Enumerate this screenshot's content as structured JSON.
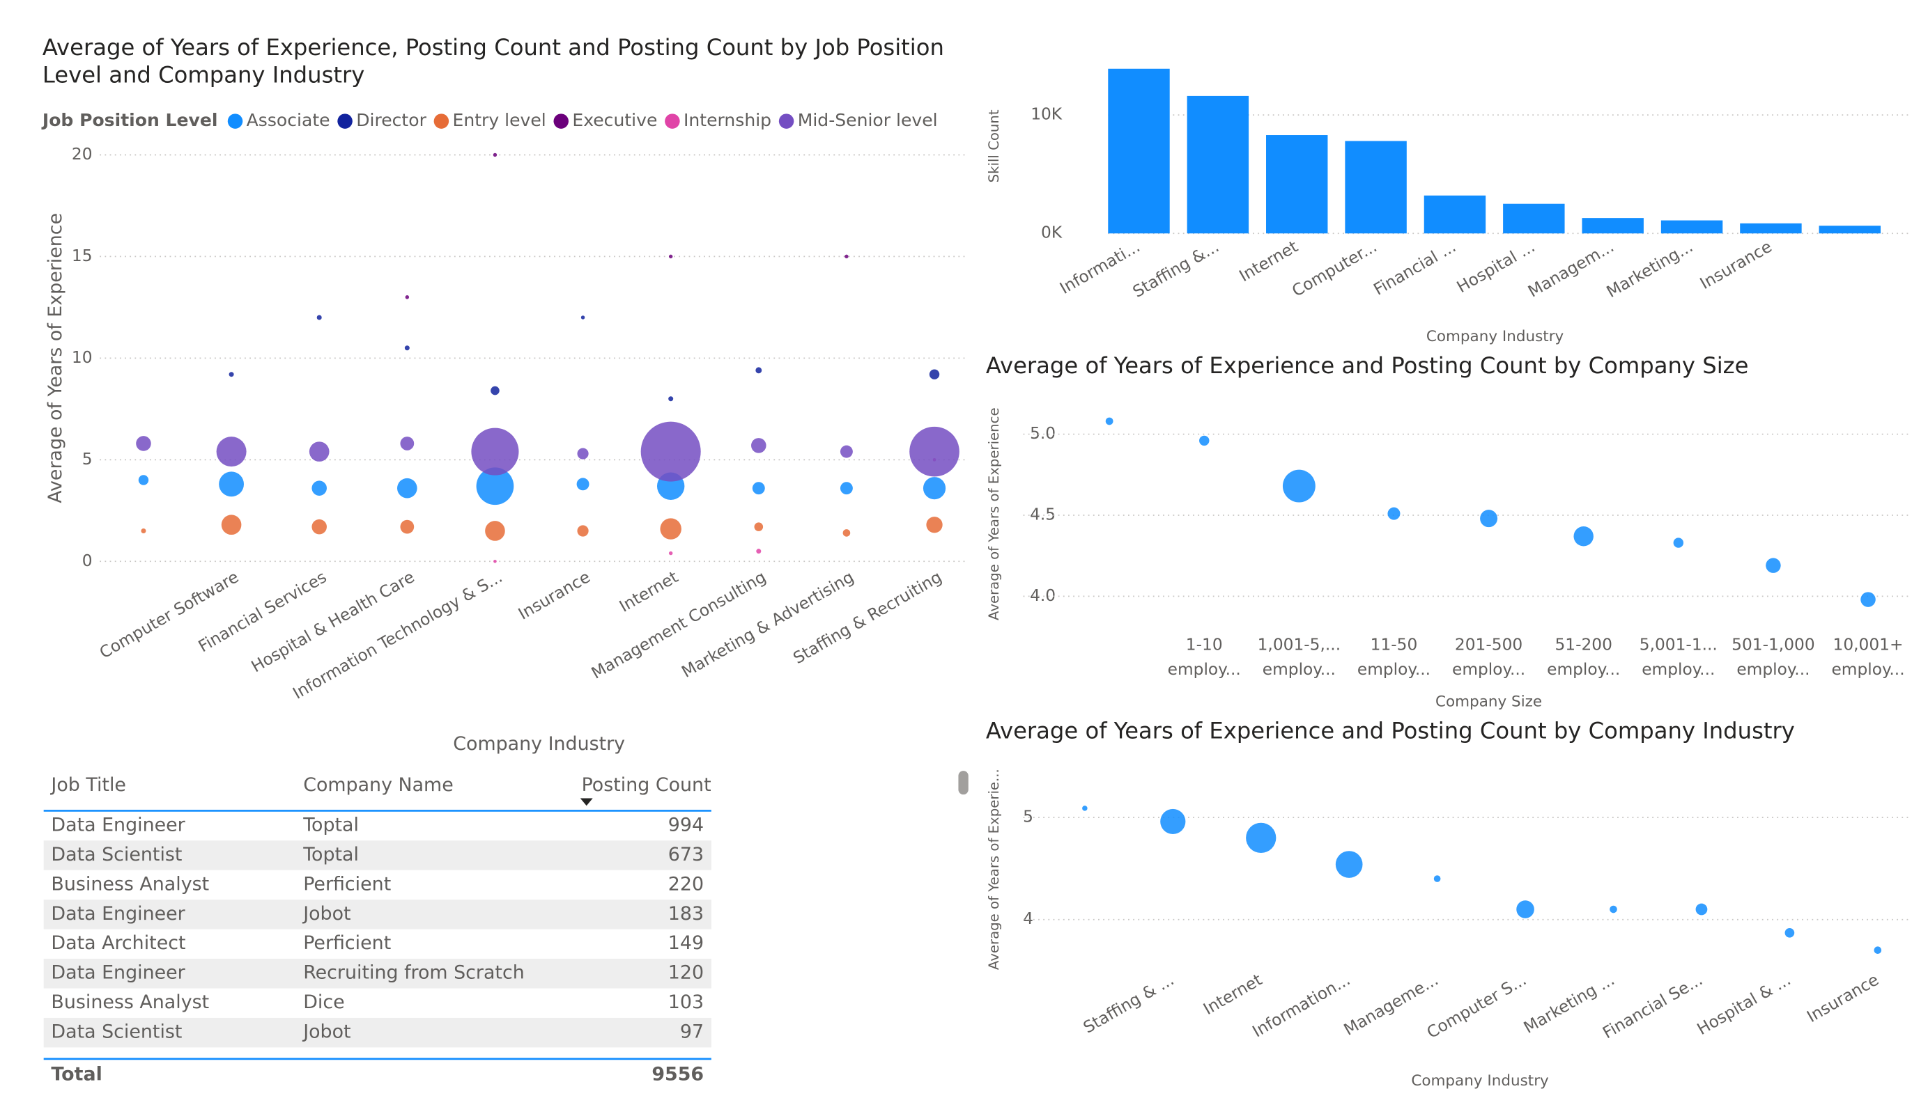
{
  "chart_data": [
    {
      "type": "scatter",
      "title": "Average of Years of Experience, Posting Count and Posting Count by Job Position Level and Company Industry",
      "legend_title": "Job Position Level",
      "x_label": "Company Industry",
      "y_label": "Average of Years of Experience",
      "categories": [
        null,
        "Computer Software",
        "Financial Services",
        "Hospital & Health Care",
        "Information Technology & S...",
        "Insurance",
        "Internet",
        "Management Consulting",
        "Marketing & Advertising",
        "Staffing & Recruiting"
      ],
      "ylim": [
        0,
        20
      ],
      "yticks": [
        0,
        5,
        10,
        15,
        20
      ],
      "grid": true,
      "series": [
        {
          "name": "Associate",
          "color": "#118DFF",
          "values": [
            4.0,
            3.8,
            3.6,
            3.6,
            3.7,
            3.8,
            3.7,
            3.6,
            3.6,
            3.6
          ],
          "sizes": [
            42,
            260,
            94,
            166,
            585,
            65,
            315,
            65,
            65,
            210
          ]
        },
        {
          "name": "Director",
          "color": "#12239E",
          "values": [
            null,
            9.2,
            12.0,
            10.5,
            8.4,
            12.0,
            8.0,
            9.4,
            null,
            9.2
          ],
          "sizes": [
            null,
            10,
            10,
            10,
            32,
            6,
            10,
            16,
            null,
            42
          ]
        },
        {
          "name": "Entry level",
          "color": "#E66C37",
          "values": [
            1.5,
            1.8,
            1.7,
            1.7,
            1.5,
            1.5,
            1.6,
            1.7,
            1.4,
            1.8
          ],
          "sizes": [
            10,
            166,
            94,
            79,
            166,
            53,
            188,
            32,
            23,
            110
          ]
        },
        {
          "name": "Executive",
          "color": "#6B007B",
          "values": [
            null,
            null,
            null,
            13.0,
            20.0,
            null,
            15.0,
            null,
            15.0,
            null
          ],
          "sizes": [
            null,
            null,
            null,
            6,
            6,
            null,
            6,
            null,
            6,
            null
          ]
        },
        {
          "name": "Internship",
          "color": "#E044A7",
          "values": [
            null,
            null,
            null,
            null,
            0.0,
            null,
            0.4,
            0.5,
            null,
            5.0
          ],
          "sizes": [
            null,
            null,
            null,
            null,
            3,
            null,
            6,
            10,
            null,
            3
          ]
        },
        {
          "name": "Mid-Senior level",
          "color": "#744EC2",
          "values": [
            5.8,
            5.4,
            5.4,
            5.8,
            5.4,
            5.3,
            5.4,
            5.7,
            5.4,
            5.4
          ],
          "sizes": [
            94,
            375,
            166,
            79,
            940,
            53,
            1500,
            94,
            65,
            1040
          ]
        }
      ]
    },
    {
      "type": "bar",
      "x_label": "Company Industry",
      "y_label": "Skill Count",
      "color": "#118DFF",
      "categories": [
        "Informati...",
        "Staffing &...",
        "Internet",
        "Computer...",
        "Financial ...",
        "Hospital ...",
        "Managem...",
        "Marketing...",
        "Insurance",
        null
      ],
      "values": [
        13900,
        11600,
        8300,
        7800,
        3200,
        2500,
        1300,
        1100,
        850,
        650
      ],
      "ylim": [
        0,
        14000
      ],
      "yticks": [
        {
          "value": 0,
          "label": "0K"
        },
        {
          "value": 10000,
          "label": "10K"
        }
      ],
      "grid": true
    },
    {
      "type": "scatter",
      "title": "Average of Years of Experience and Posting Count by Company Size",
      "x_label": "Company Size",
      "y_label": "Average of Years of Experience",
      "color": "#118DFF",
      "categories": [
        null,
        "1-10 employ...",
        "1,001-5,... employ...",
        "11-50 employ...",
        "201-500 employ...",
        "51-200 employ...",
        "5,001-1... employ...",
        "501-1,000 employ...",
        "10,001+ employ..."
      ],
      "values": [
        5.08,
        4.96,
        4.68,
        4.51,
        4.48,
        4.37,
        4.33,
        4.19,
        3.98
      ],
      "sizes": [
        100,
        180,
        1900,
        280,
        540,
        700,
        180,
        400,
        400
      ],
      "ylim": [
        3.9,
        5.15
      ],
      "yticks": [
        {
          "value": 4,
          "label": "4.0"
        },
        4.5,
        {
          "value": 5,
          "label": "5.0"
        }
      ],
      "grid": true
    },
    {
      "type": "scatter",
      "title": "Average of Years of Experience and Posting Count by Company Industry",
      "x_label": "Company Industry",
      "y_label": "Average of Years of Experie...",
      "color": "#118DFF",
      "categories": [
        null,
        "Staffing & ...",
        "Internet",
        "Information...",
        "Manageme...",
        "Computer S...",
        "Marketing ...",
        "Financial Se...",
        "Hospital & ...",
        "Insurance"
      ],
      "values": [
        5.09,
        4.96,
        4.8,
        4.54,
        4.4,
        4.1,
        4.1,
        4.1,
        3.87,
        3.7
      ],
      "sizes": [
        60,
        1400,
        2000,
        1600,
        100,
        700,
        120,
        300,
        200,
        120
      ],
      "ylim": [
        3.6,
        5.2
      ],
      "yticks": [
        4,
        5
      ],
      "grid": true
    }
  ],
  "table": {
    "columns": [
      "Job Title",
      "Company Name",
      "Posting Count"
    ],
    "rows": [
      [
        "Data Engineer",
        "Toptal",
        994
      ],
      [
        "Data Scientist",
        "Toptal",
        673
      ],
      [
        "Business Analyst",
        "Perficient",
        220
      ],
      [
        "Data Engineer",
        "Jobot",
        183
      ],
      [
        "Data Architect",
        "Perficient",
        149
      ],
      [
        "Data Engineer",
        "Recruiting from Scratch",
        120
      ],
      [
        "Business Analyst",
        "Dice",
        103
      ],
      [
        "Data Scientist",
        "Jobot",
        97
      ]
    ],
    "total_label": "Total",
    "total": 9556
  }
}
